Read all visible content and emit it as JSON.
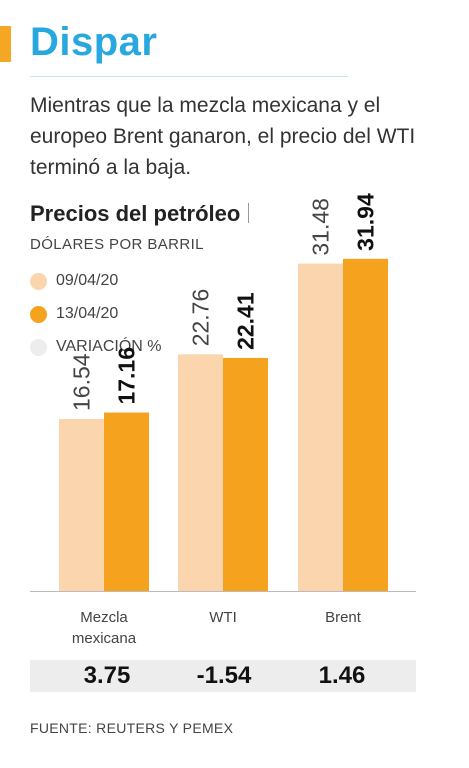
{
  "headline": "Dispar",
  "dek": "Mientras que la mezcla mexicana y el europeo Brent ganaron, el precio del WTI terminó a la baja.",
  "colors": {
    "accent": "#f5a623",
    "headline": "#29a7df",
    "series_1": "#fbd5ad",
    "series_2": "#f5a21f",
    "variation": "#ededed"
  },
  "chart_data": {
    "type": "bar",
    "title": "Precios del petróleo",
    "ylabel": "DÓLARES POR BARRIL",
    "categories": [
      "Mezcla mexicana",
      "WTI",
      "Brent"
    ],
    "category_lines": [
      [
        "Mezcla",
        "mexicana"
      ],
      [
        "WTI"
      ],
      [
        "Brent"
      ]
    ],
    "series": [
      {
        "name": "09/04/20",
        "values": [
          16.54,
          22.76,
          31.48
        ],
        "labels": [
          "16.54",
          "22.76",
          "31.48"
        ]
      },
      {
        "name": "13/04/20",
        "values": [
          17.16,
          22.41,
          31.94
        ],
        "labels": [
          "17.16",
          "22.41",
          "31.94"
        ]
      }
    ],
    "variation": {
      "name": "VARIACIÓN %",
      "values": [
        3.75,
        -1.54,
        1.46
      ],
      "labels": [
        "3.75",
        "-1.54",
        "1.46"
      ]
    },
    "ylim": [
      0,
      40
    ],
    "legend": "top-left",
    "grid": false
  },
  "source": "FUENTE: REUTERS Y PEMEX"
}
